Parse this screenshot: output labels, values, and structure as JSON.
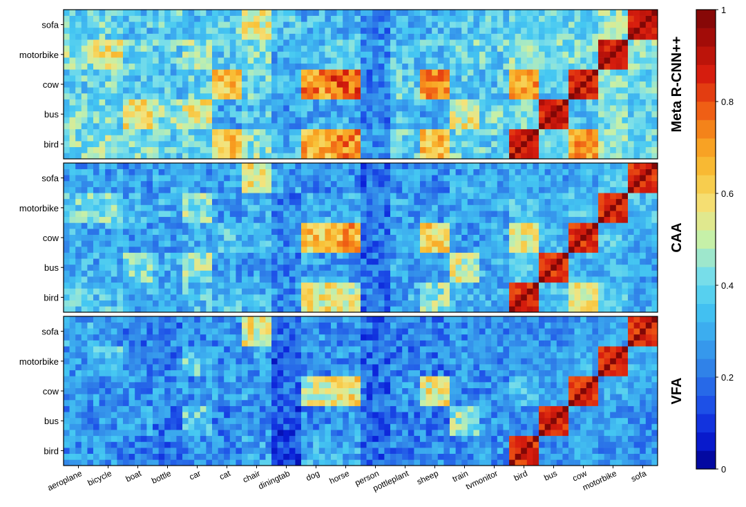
{
  "chart_data": {
    "type": "heatmap",
    "x_tick_labels": [
      "aeroplane",
      "bicycle",
      "boat",
      "bottle",
      "car",
      "cat",
      "chair",
      "diningtab",
      "dog",
      "horse",
      "person",
      "pottleplant",
      "sheep",
      "train",
      "tvmonitor",
      "bird",
      "bus",
      "cow",
      "motorbike",
      "sofa"
    ],
    "y_tick_labels": [
      "bird",
      "bus",
      "cow",
      "motorbike",
      "sofa"
    ],
    "cells_per_class": 5,
    "base_classes": [
      "aeroplane",
      "bicycle",
      "boat",
      "bottle",
      "car",
      "cat",
      "chair",
      "diningtab",
      "dog",
      "horse",
      "person",
      "pottleplant",
      "sheep",
      "train",
      "tvmonitor"
    ],
    "novel_classes": [
      "bird",
      "bus",
      "cow",
      "motorbike",
      "sofa"
    ],
    "panels": [
      {
        "label": "Meta R-CNN++",
        "novel_block_similarity": {
          "bird": {
            "aeroplane": 0.42,
            "bicycle": 0.45,
            "boat": 0.42,
            "bottle": 0.38,
            "car": 0.4,
            "cat": 0.62,
            "chair": 0.45,
            "diningtab": 0.32,
            "dog": 0.68,
            "horse": 0.72,
            "person": 0.25,
            "pottleplant": 0.38,
            "sheep": 0.66,
            "train": 0.4,
            "tvmonitor": 0.38,
            "bird": 0.95,
            "bus": 0.4,
            "cow": 0.7,
            "motorbike": 0.45,
            "sofa": 0.4
          },
          "bus": {
            "aeroplane": 0.42,
            "bicycle": 0.4,
            "boat": 0.55,
            "bottle": 0.45,
            "car": 0.55,
            "cat": 0.3,
            "chair": 0.35,
            "diningtab": 0.28,
            "dog": 0.3,
            "horse": 0.3,
            "person": 0.22,
            "pottleplant": 0.35,
            "sheep": 0.3,
            "train": 0.55,
            "tvmonitor": 0.4,
            "bird": 0.4,
            "bus": 0.95,
            "cow": 0.35,
            "motorbike": 0.42,
            "sofa": 0.38
          },
          "cow": {
            "aeroplane": 0.38,
            "bicycle": 0.4,
            "boat": 0.35,
            "bottle": 0.35,
            "car": 0.38,
            "cat": 0.62,
            "chair": 0.4,
            "diningtab": 0.3,
            "dog": 0.72,
            "horse": 0.78,
            "person": 0.22,
            "pottleplant": 0.38,
            "sheep": 0.72,
            "train": 0.35,
            "tvmonitor": 0.35,
            "bird": 0.7,
            "bus": 0.35,
            "cow": 0.95,
            "motorbike": 0.42,
            "sofa": 0.4
          },
          "motorbike": {
            "aeroplane": 0.45,
            "bicycle": 0.55,
            "boat": 0.4,
            "bottle": 0.38,
            "car": 0.45,
            "cat": 0.35,
            "chair": 0.42,
            "diningtab": 0.3,
            "dog": 0.35,
            "horse": 0.38,
            "person": 0.25,
            "pottleplant": 0.35,
            "sheep": 0.35,
            "train": 0.4,
            "tvmonitor": 0.38,
            "bird": 0.45,
            "bus": 0.42,
            "cow": 0.42,
            "motorbike": 0.95,
            "sofa": 0.45
          },
          "sofa": {
            "aeroplane": 0.38,
            "bicycle": 0.4,
            "boat": 0.35,
            "bottle": 0.38,
            "car": 0.35,
            "cat": 0.38,
            "chair": 0.55,
            "diningtab": 0.35,
            "dog": 0.32,
            "horse": 0.32,
            "person": 0.22,
            "pottleplant": 0.32,
            "sheep": 0.32,
            "train": 0.35,
            "tvmonitor": 0.38,
            "bird": 0.4,
            "bus": 0.38,
            "cow": 0.4,
            "motorbike": 0.45,
            "sofa": 0.95
          }
        }
      },
      {
        "label": "CAA",
        "novel_block_similarity": {
          "bird": {
            "aeroplane": 0.35,
            "bicycle": 0.35,
            "boat": 0.3,
            "bottle": 0.3,
            "car": 0.35,
            "cat": 0.35,
            "chair": 0.32,
            "diningtab": 0.25,
            "dog": 0.55,
            "horse": 0.52,
            "person": 0.2,
            "pottleplant": 0.3,
            "sheep": 0.45,
            "train": 0.32,
            "tvmonitor": 0.3,
            "bird": 0.92,
            "bus": 0.35,
            "cow": 0.55,
            "motorbike": 0.35,
            "sofa": 0.3
          },
          "bus": {
            "aeroplane": 0.32,
            "bicycle": 0.3,
            "boat": 0.42,
            "bottle": 0.3,
            "car": 0.45,
            "cat": 0.28,
            "chair": 0.28,
            "diningtab": 0.22,
            "dog": 0.28,
            "horse": 0.28,
            "person": 0.18,
            "pottleplant": 0.28,
            "sheep": 0.28,
            "train": 0.52,
            "tvmonitor": 0.3,
            "bird": 0.35,
            "bus": 0.92,
            "cow": 0.32,
            "motorbike": 0.32,
            "sofa": 0.28
          },
          "cow": {
            "aeroplane": 0.3,
            "bicycle": 0.3,
            "boat": 0.28,
            "bottle": 0.28,
            "car": 0.3,
            "cat": 0.35,
            "chair": 0.32,
            "diningtab": 0.25,
            "dog": 0.62,
            "horse": 0.68,
            "person": 0.2,
            "pottleplant": 0.28,
            "sheep": 0.6,
            "train": 0.28,
            "tvmonitor": 0.28,
            "bird": 0.55,
            "bus": 0.32,
            "cow": 0.92,
            "motorbike": 0.35,
            "sofa": 0.3
          },
          "motorbike": {
            "aeroplane": 0.4,
            "bicycle": 0.42,
            "boat": 0.3,
            "bottle": 0.3,
            "car": 0.45,
            "cat": 0.28,
            "chair": 0.3,
            "diningtab": 0.22,
            "dog": 0.3,
            "horse": 0.32,
            "person": 0.18,
            "pottleplant": 0.28,
            "sheep": 0.28,
            "train": 0.3,
            "tvmonitor": 0.3,
            "bird": 0.35,
            "bus": 0.32,
            "cow": 0.35,
            "motorbike": 0.92,
            "sofa": 0.35
          },
          "sofa": {
            "aeroplane": 0.28,
            "bicycle": 0.28,
            "boat": 0.25,
            "bottle": 0.28,
            "car": 0.28,
            "cat": 0.28,
            "chair": 0.55,
            "diningtab": 0.28,
            "dog": 0.25,
            "horse": 0.25,
            "person": 0.18,
            "pottleplant": 0.25,
            "sheep": 0.25,
            "train": 0.28,
            "tvmonitor": 0.28,
            "bird": 0.3,
            "bus": 0.28,
            "cow": 0.3,
            "motorbike": 0.35,
            "sofa": 0.92
          }
        }
      },
      {
        "label": "VFA",
        "novel_block_similarity": {
          "bird": {
            "aeroplane": 0.25,
            "bicycle": 0.25,
            "boat": 0.22,
            "bottle": 0.2,
            "car": 0.25,
            "cat": 0.25,
            "chair": 0.28,
            "diningtab": 0.12,
            "dog": 0.3,
            "horse": 0.3,
            "person": 0.18,
            "pottleplant": 0.22,
            "sheep": 0.25,
            "train": 0.25,
            "tvmonitor": 0.25,
            "bird": 0.92,
            "bus": 0.25,
            "cow": 0.3,
            "motorbike": 0.25,
            "sofa": 0.25
          },
          "bus": {
            "aeroplane": 0.25,
            "bicycle": 0.25,
            "boat": 0.28,
            "bottle": 0.22,
            "car": 0.38,
            "cat": 0.22,
            "chair": 0.25,
            "diningtab": 0.15,
            "dog": 0.25,
            "horse": 0.25,
            "person": 0.18,
            "pottleplant": 0.22,
            "sheep": 0.22,
            "train": 0.45,
            "tvmonitor": 0.25,
            "bird": 0.25,
            "bus": 0.92,
            "cow": 0.28,
            "motorbike": 0.28,
            "sofa": 0.25
          },
          "cow": {
            "aeroplane": 0.25,
            "bicycle": 0.25,
            "boat": 0.25,
            "bottle": 0.25,
            "car": 0.25,
            "cat": 0.28,
            "chair": 0.28,
            "diningtab": 0.18,
            "dog": 0.52,
            "horse": 0.58,
            "person": 0.18,
            "pottleplant": 0.25,
            "sheep": 0.55,
            "train": 0.25,
            "tvmonitor": 0.25,
            "bird": 0.35,
            "bus": 0.28,
            "cow": 0.92,
            "motorbike": 0.3,
            "sofa": 0.28
          },
          "motorbike": {
            "aeroplane": 0.28,
            "bicycle": 0.35,
            "boat": 0.25,
            "bottle": 0.22,
            "car": 0.38,
            "cat": 0.25,
            "chair": 0.28,
            "diningtab": 0.15,
            "dog": 0.25,
            "horse": 0.25,
            "person": 0.18,
            "pottleplant": 0.22,
            "sheep": 0.22,
            "train": 0.25,
            "tvmonitor": 0.25,
            "bird": 0.25,
            "bus": 0.28,
            "cow": 0.3,
            "motorbike": 0.92,
            "sofa": 0.3
          },
          "sofa": {
            "aeroplane": 0.3,
            "bicycle": 0.25,
            "boat": 0.22,
            "bottle": 0.22,
            "car": 0.25,
            "cat": 0.25,
            "chair": 0.55,
            "diningtab": 0.18,
            "dog": 0.25,
            "horse": 0.25,
            "person": 0.18,
            "pottleplant": 0.22,
            "sheep": 0.22,
            "train": 0.25,
            "tvmonitor": 0.25,
            "bird": 0.25,
            "bus": 0.25,
            "cow": 0.28,
            "motorbike": 0.3,
            "sofa": 0.92
          }
        }
      }
    ],
    "colorbar": {
      "min": 0,
      "max": 1,
      "tick_labels": [
        "0",
        "0.2",
        "0.4",
        "0.6",
        "0.8",
        "1"
      ],
      "colorscale": [
        "#00008b",
        "#0a1fd8",
        "#1e52e8",
        "#2f7fe8",
        "#3aa6ee",
        "#45c8f2",
        "#7ee0e8",
        "#c6f0a8",
        "#f5e27a",
        "#f8c33a",
        "#f89a1e",
        "#ee5a14",
        "#d81e0e",
        "#aa0d08",
        "#7a0606"
      ]
    },
    "grid": false,
    "legend": "right"
  }
}
